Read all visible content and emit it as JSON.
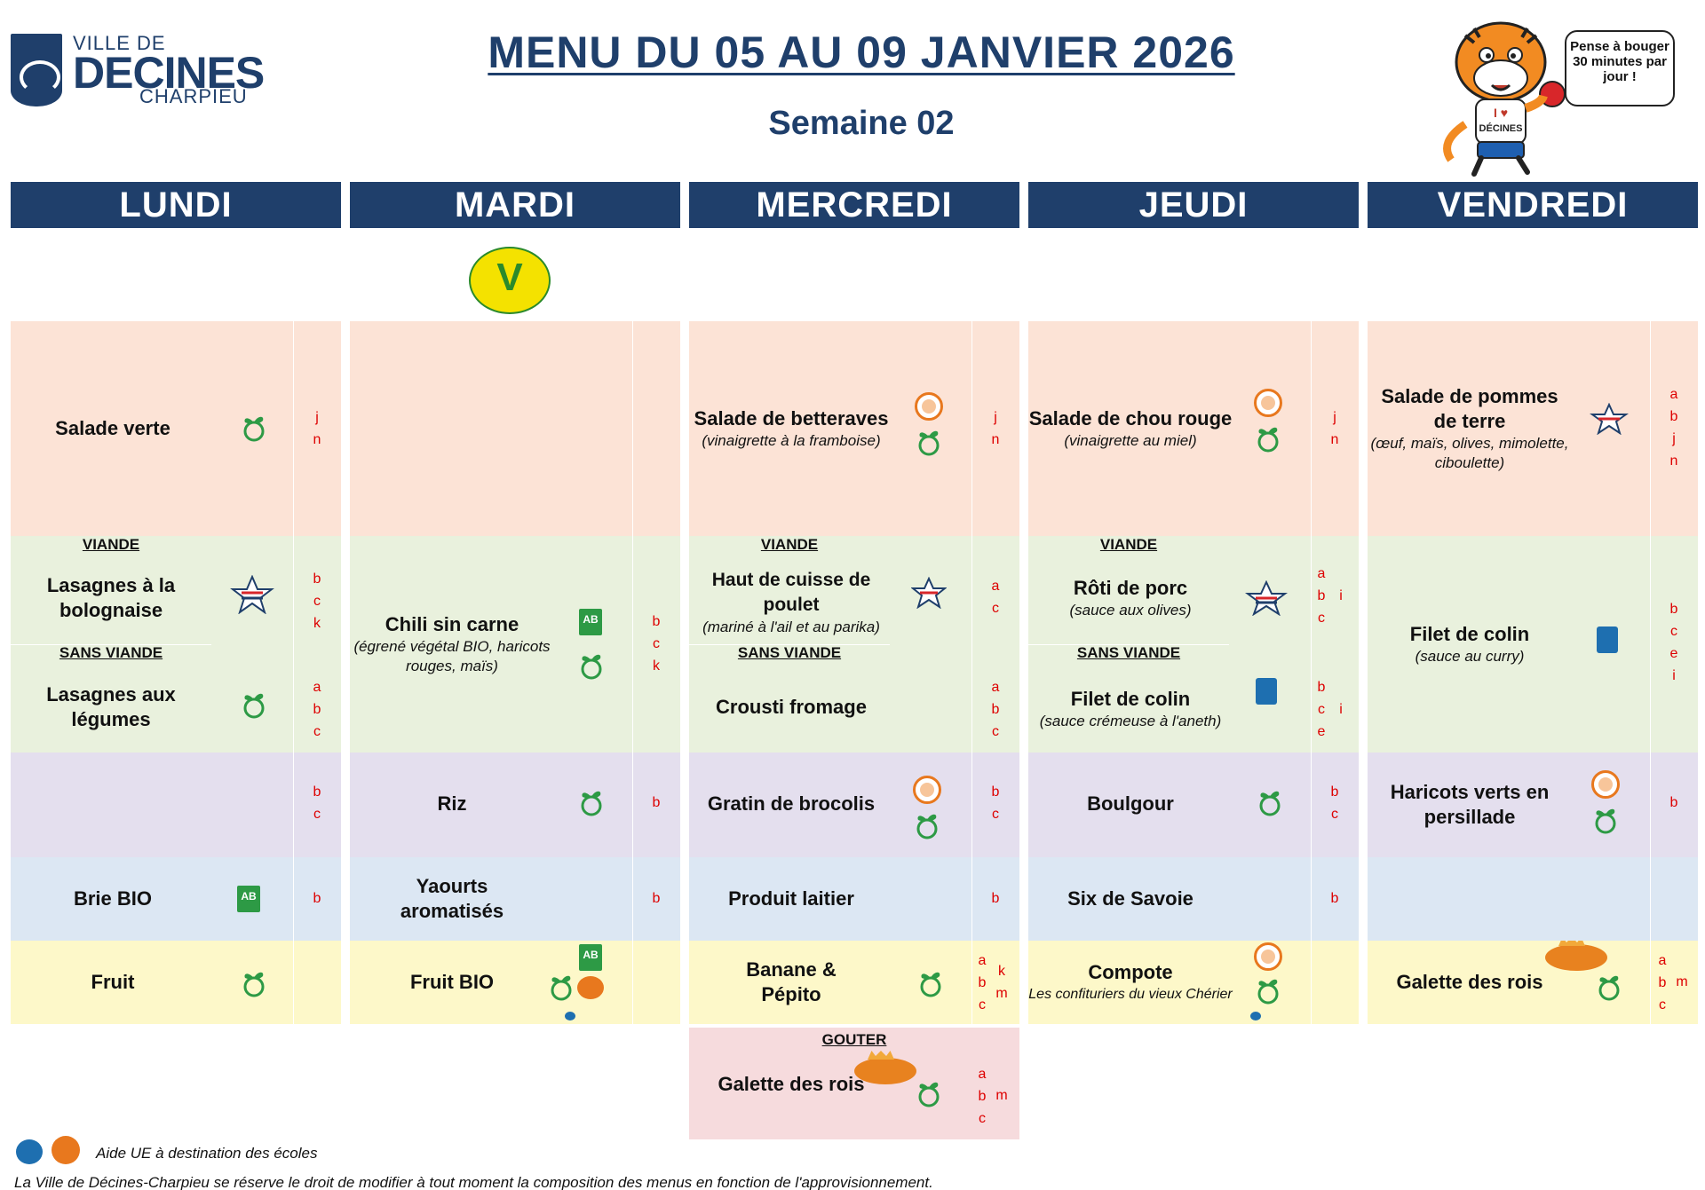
{
  "header": {
    "logo_line1": "VILLE DE",
    "logo_line2": "DECINES",
    "logo_line3": "CHARPIEU",
    "title": "MENU DU 05 AU 09 JANVIER 2026",
    "subtitle": "Semaine 02",
    "mascot_tshirt": "I ♥ DÉCINES",
    "bubble": "Pense à bouger 30 minutes par jour !"
  },
  "days": [
    "LUNDI",
    "MARDI",
    "MERCREDI",
    "JEUDI",
    "VENDREDI"
  ],
  "icons_legend": [
    "salad-icon",
    "ab-bio-icon",
    "fish-label-icon",
    "french-origin-icon",
    "homemade-icon",
    "galette-icon",
    "v-label-icon",
    "eu-icon"
  ],
  "colors": {
    "navy": "#1f3f6b",
    "entree_bg": "#fce3d6",
    "plat_bg": "#e9f1dd",
    "accomp_bg": "#e4dfee",
    "laitier_bg": "#dce7f3",
    "dessert_bg": "#fdf8c9",
    "gouter_bg": "#f6dbdd",
    "allergen": "#dd0000"
  },
  "vegetarian_label": "V",
  "lundi": {
    "entree": {
      "dish": "Salade verte",
      "alg": "j\nn"
    },
    "viande_label": "VIANDE",
    "viande": {
      "dish": "Lasagnes à la bolognaise",
      "alg": "b\nc\nk"
    },
    "sans_viande_label": "SANS VIANDE",
    "sans_viande": {
      "dish": "Lasagnes aux légumes",
      "alg": "a\nb\nc"
    },
    "accomp": {
      "dish": "",
      "alg": "b\nc"
    },
    "laitier": {
      "dish": "Brie BIO",
      "alg": "b"
    },
    "dessert": {
      "dish": "Fruit",
      "alg": ""
    }
  },
  "mardi": {
    "entree": {
      "dish": "",
      "alg": ""
    },
    "plat": {
      "dish": "Chili sin carne",
      "note": "(égrené végétal BIO, haricots rouges, maïs)",
      "alg": "b\nc\nk"
    },
    "accomp": {
      "dish": "Riz",
      "alg": "b"
    },
    "laitier": {
      "dish": "Yaourts aromatisés",
      "alg": "b"
    },
    "dessert": {
      "dish": "Fruit BIO",
      "alg": ""
    }
  },
  "mercredi": {
    "entree": {
      "dish": "Salade de betteraves",
      "note": "(vinaigrette à la framboise)",
      "alg": "j\nn"
    },
    "viande_label": "VIANDE",
    "viande": {
      "dish": "Haut de cuisse de poulet",
      "note": "(mariné à l'ail et au parika)",
      "alg": "a\nc"
    },
    "sans_viande_label": "SANS VIANDE",
    "sans_viande": {
      "dish": "Crousti fromage",
      "alg": "a\nb\nc"
    },
    "accomp": {
      "dish": "Gratin de brocolis",
      "alg": "b\nc"
    },
    "laitier": {
      "dish": "Produit laitier",
      "alg": "b"
    },
    "dessert": {
      "dish": "Banane & Pépito",
      "alg": "a\nb\nc",
      "alg2": "k\nm"
    },
    "gouter_label": "GOUTER",
    "gouter": {
      "dish": "Galette des rois",
      "alg": "a\nb\nc",
      "alg2": "m"
    }
  },
  "jeudi": {
    "entree": {
      "dish": "Salade de chou rouge",
      "note": "(vinaigrette au miel)",
      "alg": "j\nn"
    },
    "viande_label": "VIANDE",
    "viande": {
      "dish": "Rôti de porc",
      "note": "(sauce aux olives)",
      "alg": "a\nb\nc",
      "alg2": "i"
    },
    "sans_viande_label": "SANS VIANDE",
    "sans_viande": {
      "dish": "Filet de colin",
      "note": "(sauce crémeuse à l'aneth)",
      "alg": "b\nc\ne",
      "alg2": "i"
    },
    "accomp": {
      "dish": "Boulgour",
      "alg": "b\nc"
    },
    "laitier": {
      "dish": "Six de Savoie",
      "alg": "b"
    },
    "dessert": {
      "dish": "Compote",
      "note": "Les confituriers du vieux Chérier",
      "alg": ""
    }
  },
  "vendredi": {
    "entree": {
      "dish": "Salade de pommes de terre",
      "note": "(œuf, maïs, olives, mimolette, ciboulette)",
      "alg": "a\nb\nj\nn"
    },
    "plat": {
      "dish": "Filet de colin",
      "note": "(sauce au curry)",
      "alg": "b\nc\ne\ni"
    },
    "accomp": {
      "dish": "Haricots verts en persillade",
      "alg": "b"
    },
    "laitier": {
      "dish": "",
      "alg": ""
    },
    "dessert": {
      "dish": "Galette des rois",
      "alg": "a\nb\nc",
      "alg2": "m"
    }
  },
  "footer": {
    "eu_note": "Aide UE à destination des écoles",
    "disclaimer": "La Ville de Décines-Charpieu se réserve le droit de modifier à tout moment la composition des menus en fonction de l'approvisionnement."
  }
}
